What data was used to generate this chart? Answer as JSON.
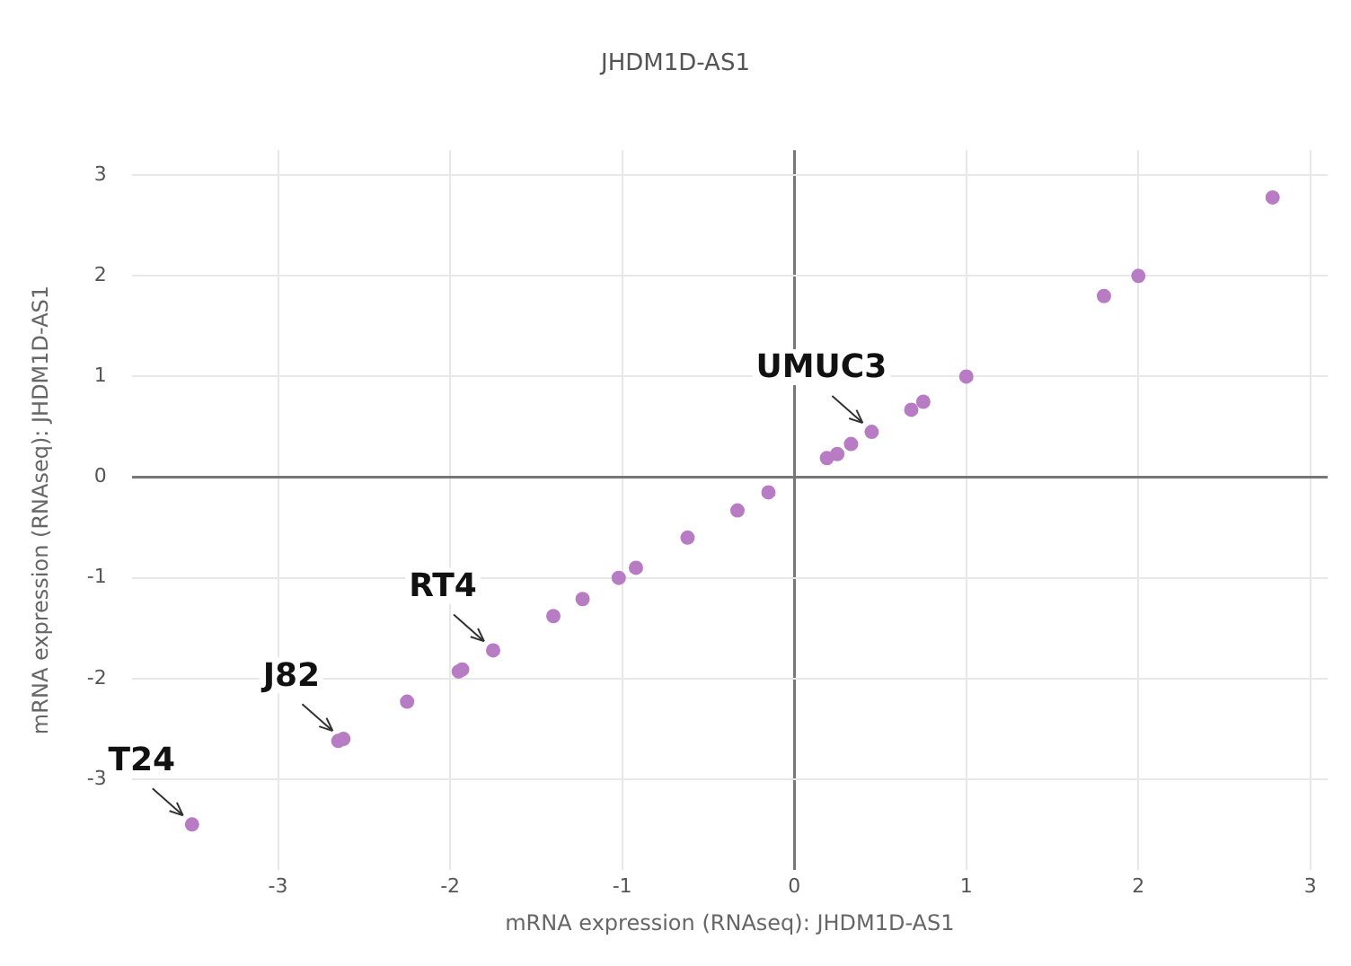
{
  "chart_data": {
    "type": "scatter",
    "title": "JHDM1D-AS1",
    "xlabel": "mRNA expression (RNAseq): JHDM1D-AS1",
    "ylabel": "mRNA expression (RNAseq): JHDM1D-AS1",
    "series": [
      {
        "color": "#b77cc4",
        "x": [
          -3.5,
          -2.65,
          -2.62,
          -2.25,
          -1.95,
          -1.93,
          -1.75,
          -1.4,
          -1.23,
          -1.02,
          -0.92,
          -0.62,
          -0.33,
          -0.15,
          0.19,
          0.25,
          0.33,
          0.45,
          0.68,
          0.75,
          1.0,
          1.8,
          2.0,
          2.78
        ],
        "values": [
          -3.45,
          -2.62,
          -2.6,
          -2.23,
          -1.93,
          -1.91,
          -1.72,
          -1.38,
          -1.21,
          -1.0,
          -0.9,
          -0.6,
          -0.33,
          -0.15,
          0.19,
          0.23,
          0.33,
          0.45,
          0.67,
          0.75,
          1.0,
          1.8,
          2.0,
          2.78
        ]
      }
    ],
    "xlim": [
      -3.85,
      3.1
    ],
    "ylim": [
      -3.9,
      3.25
    ],
    "xticks": [
      -3,
      -2,
      -1,
      0,
      1,
      2,
      3
    ],
    "yticks": [
      -3,
      -2,
      -1,
      0,
      1,
      2,
      3
    ],
    "annotations": [
      {
        "text": "T24",
        "x": -3.5,
        "y": -3.45
      },
      {
        "text": "J82",
        "x": -2.63,
        "y": -2.61
      },
      {
        "text": "RT4",
        "x": -1.75,
        "y": -1.72
      },
      {
        "text": "UMUC3",
        "x": 0.45,
        "y": 0.45
      }
    ],
    "grid": true,
    "marker": "circle",
    "legend": false
  }
}
